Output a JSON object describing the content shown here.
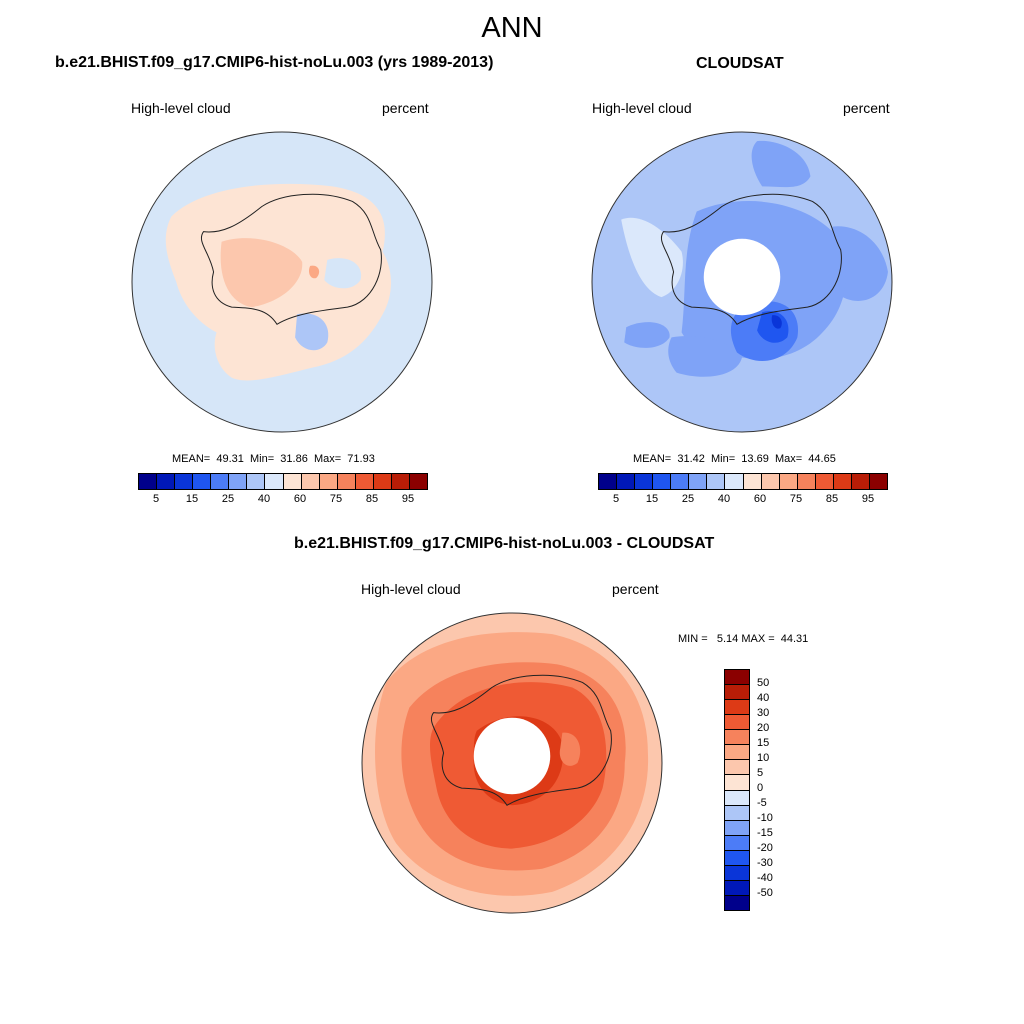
{
  "figure_title": "ANN",
  "panels": [
    {
      "title": "b.e21.BHIST.f09_g17.CMIP6-hist-noLu.003 (yrs 1989-2013)",
      "variable": "High-level cloud",
      "units": "percent",
      "stats": {
        "mean_label": "MEAN=",
        "mean": "49.31",
        "min_label": "Min=",
        "min": "31.86",
        "max_label": "Max=",
        "max": "71.93"
      }
    },
    {
      "title": "CLOUDSAT",
      "variable": "High-level cloud",
      "units": "percent",
      "stats": {
        "mean_label": "MEAN=",
        "mean": "31.42",
        "min_label": "Min=",
        "min": "13.69",
        "max_label": "Max=",
        "max": "44.65"
      }
    },
    {
      "title": "b.e21.BHIST.f09_g17.CMIP6-hist-noLu.003 - CLOUDSAT",
      "variable": "High-level cloud",
      "units": "percent",
      "stats": {
        "min_label": "MIN =",
        "min": "5.14",
        "max_label": "MAX =",
        "max": "44.31"
      }
    }
  ],
  "colorbar_abs": {
    "colors": [
      "#00008b",
      "#0018b8",
      "#0a35d8",
      "#1f56f0",
      "#4c7cf7",
      "#7fa3f7",
      "#adc6f7",
      "#dbe8fb",
      "#fde4d4",
      "#fcc7ad",
      "#fba884",
      "#f6825c",
      "#ef5a34",
      "#dd3a16",
      "#b81d07",
      "#8b0000"
    ],
    "tick_labels": [
      "5",
      "15",
      "25",
      "40",
      "60",
      "75",
      "85",
      "95"
    ]
  },
  "colorbar_diff": {
    "colors": [
      "#8b0000",
      "#b81d07",
      "#dd3a16",
      "#ef5a34",
      "#f6825c",
      "#fba884",
      "#fcc7ad",
      "#fde4d4",
      "#dbe8fb",
      "#adc6f7",
      "#7fa3f7",
      "#4c7cf7",
      "#1f56f0",
      "#0a35d8",
      "#0018b8",
      "#00008b"
    ],
    "tick_labels": [
      "50",
      "40",
      "30",
      "20",
      "15",
      "10",
      "5",
      "0",
      "-5",
      "-10",
      "-15",
      "-20",
      "-30",
      "-40",
      "-50"
    ]
  }
}
